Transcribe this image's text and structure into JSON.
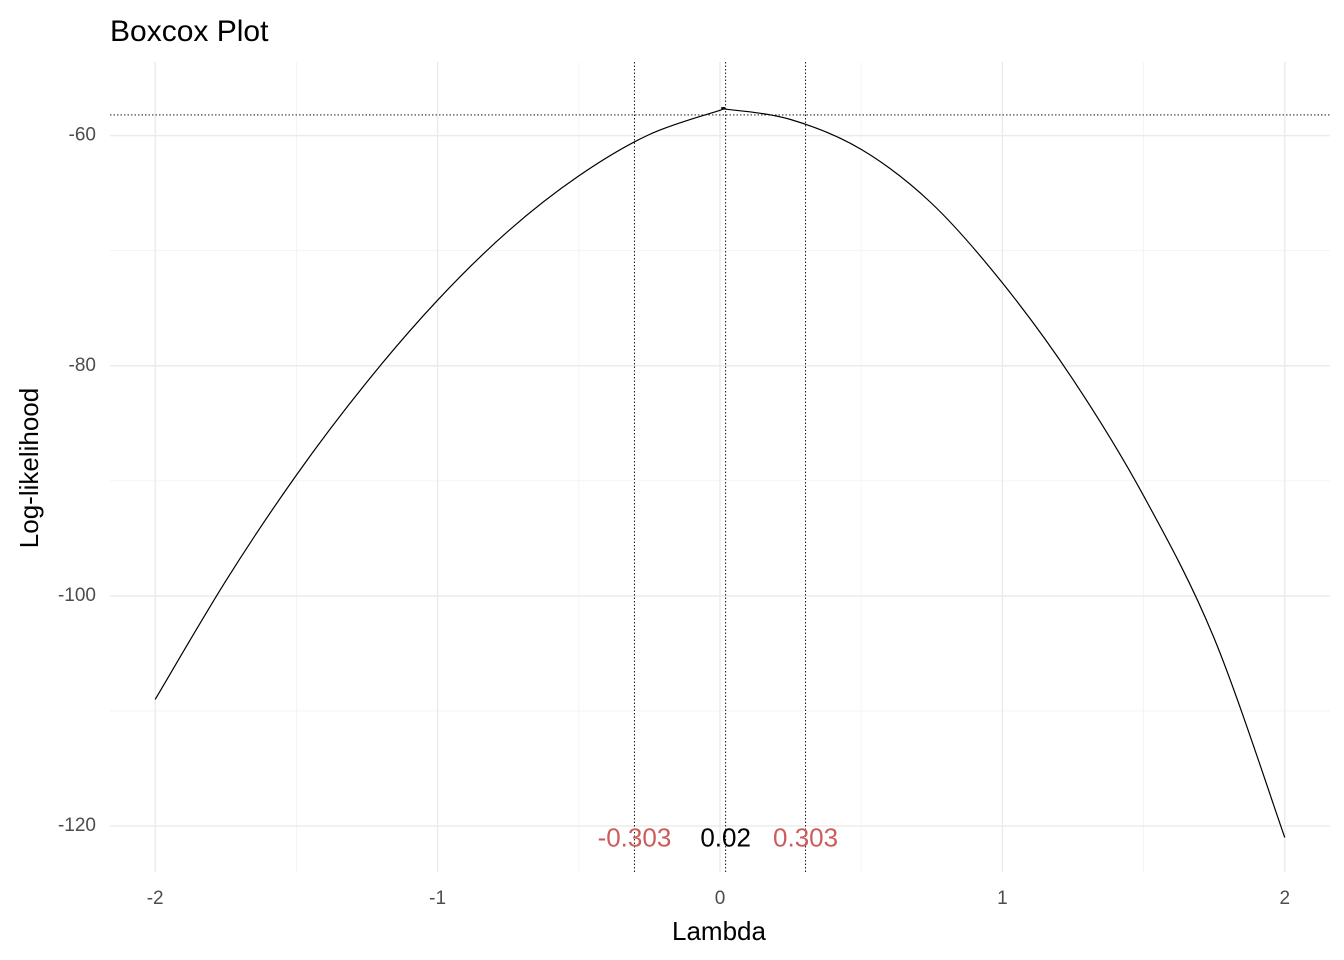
{
  "chart_data": {
    "type": "line",
    "title": "Boxcox Plot",
    "xlabel": "Lambda",
    "ylabel": "Log-likelihood",
    "xlim": [
      -2.16,
      2.16
    ],
    "ylim": [
      -124,
      -53.6
    ],
    "x_ticks": [
      -2,
      -1,
      0,
      1,
      2
    ],
    "x_tick_labels": [
      "-2",
      "-1",
      "0",
      "1",
      "2"
    ],
    "y_ticks": [
      -60,
      -80,
      -100,
      -120
    ],
    "y_tick_labels": [
      "-60",
      "-80",
      "-100",
      "-120"
    ],
    "grid": true,
    "series": [
      {
        "x": [
          -2,
          -1.75,
          -1.5,
          -1.25,
          -1,
          -0.75,
          -0.5,
          -0.25,
          0,
          0.02,
          0.25,
          0.5,
          0.75,
          1,
          1.25,
          1.5,
          1.75,
          2
        ],
        "y": [
          -109,
          -98.7,
          -89.5,
          -81.4,
          -74.3,
          -68.3,
          -63.5,
          -59.9,
          -57.8,
          -57.7,
          -58.6,
          -61.2,
          -65.9,
          -72.8,
          -81.2,
          -91.3,
          -103.7,
          -121
        ],
        "color": "#000000"
      }
    ],
    "reference_lines": {
      "vertical": [
        -0.303,
        0.02,
        0.303
      ],
      "horizontal": [
        -58.2
      ]
    },
    "annotations": [
      {
        "text": "-0.303",
        "x": -0.303,
        "y": -121.2,
        "color": "#cd5c5c"
      },
      {
        "text": "0.02",
        "x": 0.02,
        "y": -121.2,
        "color": "#000000"
      },
      {
        "text": "0.303",
        "x": 0.303,
        "y": -121.2,
        "color": "#cd5c5c"
      }
    ]
  }
}
